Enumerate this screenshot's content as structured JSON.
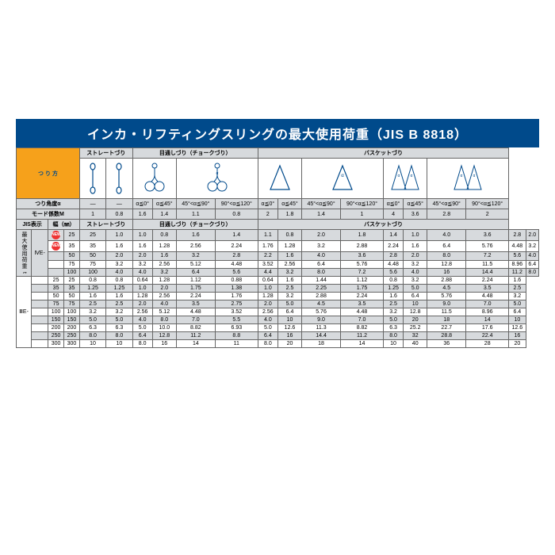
{
  "title": "インカ・リフティングスリングの最大使用荷重（JIS B 8818）",
  "method_label": "つ り 方",
  "angle_label": "つり角度α",
  "mode_label": "モード係数M",
  "jis_label": "JIS表示",
  "width_label": "幅（㎜）",
  "max_load_label": "最大使用荷重 t",
  "method_groups": [
    "ストレートづり",
    "目通しづり（チョークづり）",
    "バスケットづり"
  ],
  "method_sub": [
    "ストレートづり",
    "目通しづり（チョークづり）",
    "バスケットづり"
  ],
  "angles": [
    "—",
    "—",
    "α≦0°",
    "α≦45°",
    "45°<α≦90°",
    "90°<α≦120°",
    "α≦0°",
    "α≦45°",
    "45°<α≦90°",
    "90°<α≦120°",
    "α≦0°",
    "α≦45°",
    "45°<α≦90°",
    "90°<α≦120°"
  ],
  "modes": [
    "1",
    "0.8",
    "1.6",
    "1.4",
    "1.1",
    "0.8",
    "2",
    "1.8",
    "1.4",
    "1",
    "4",
    "3.6",
    "2.8",
    "2"
  ],
  "grade1": "ⅣE-",
  "grade2": "ⅢE-",
  "rows1": [
    {
      "new": true,
      "v": [
        "25",
        "25",
        "1.0",
        "1.0",
        "0.8",
        "1.6",
        "1.4",
        "1.1",
        "0.8",
        "2.0",
        "1.8",
        "1.4",
        "1.0",
        "4.0",
        "3.6",
        "2.8",
        "2.0"
      ]
    },
    {
      "new": true,
      "v": [
        "35",
        "35",
        "1.6",
        "1.6",
        "1.28",
        "2.56",
        "2.24",
        "1.76",
        "1.28",
        "3.2",
        "2.88",
        "2.24",
        "1.6",
        "6.4",
        "5.76",
        "4.48",
        "3.2"
      ]
    },
    {
      "new": false,
      "v": [
        "50",
        "50",
        "2.0",
        "2.0",
        "1.6",
        "3.2",
        "2.8",
        "2.2",
        "1.6",
        "4.0",
        "3.6",
        "2.8",
        "2.0",
        "8.0",
        "7.2",
        "5.6",
        "4.0"
      ]
    },
    {
      "new": false,
      "v": [
        "75",
        "75",
        "3.2",
        "3.2",
        "2.56",
        "5.12",
        "4.48",
        "3.52",
        "2.56",
        "6.4",
        "5.76",
        "4.48",
        "3.2",
        "12.8",
        "11.5",
        "8.96",
        "6.4"
      ]
    },
    {
      "new": false,
      "v": [
        "100",
        "100",
        "4.0",
        "4.0",
        "3.2",
        "6.4",
        "5.6",
        "4.4",
        "3.2",
        "8.0",
        "7.2",
        "5.6",
        "4.0",
        "16",
        "14.4",
        "11.2",
        "8.0"
      ]
    }
  ],
  "rows2": [
    [
      "25",
      "25",
      "0.8",
      "0.8",
      "0.64",
      "1.28",
      "1.12",
      "0.88",
      "0.64",
      "1.6",
      "1.44",
      "1.12",
      "0.8",
      "3.2",
      "2.88",
      "2.24",
      "1.6"
    ],
    [
      "35",
      "35",
      "1.25",
      "1.25",
      "1.0",
      "2.0",
      "1.75",
      "1.38",
      "1.0",
      "2.5",
      "2.25",
      "1.75",
      "1.25",
      "5.0",
      "4.5",
      "3.5",
      "2.5"
    ],
    [
      "50",
      "50",
      "1.6",
      "1.6",
      "1.28",
      "2.56",
      "2.24",
      "1.76",
      "1.28",
      "3.2",
      "2.88",
      "2.24",
      "1.6",
      "6.4",
      "5.76",
      "4.48",
      "3.2"
    ],
    [
      "75",
      "75",
      "2.5",
      "2.5",
      "2.0",
      "4.0",
      "3.5",
      "2.75",
      "2.0",
      "5.0",
      "4.5",
      "3.5",
      "2.5",
      "10",
      "9.0",
      "7.0",
      "5.0"
    ],
    [
      "100",
      "100",
      "3.2",
      "3.2",
      "2.56",
      "5.12",
      "4.48",
      "3.52",
      "2.56",
      "6.4",
      "5.76",
      "4.48",
      "3.2",
      "12.8",
      "11.5",
      "8.96",
      "6.4"
    ],
    [
      "150",
      "150",
      "5.0",
      "5.0",
      "4.0",
      "8.0",
      "7.0",
      "5.5",
      "4.0",
      "10",
      "9.0",
      "7.0",
      "5.0",
      "20",
      "18",
      "14",
      "10"
    ],
    [
      "200",
      "200",
      "6.3",
      "6.3",
      "5.0",
      "10.0",
      "8.82",
      "6.93",
      "5.0",
      "12.6",
      "11.3",
      "8.82",
      "6.3",
      "25.2",
      "22.7",
      "17.6",
      "12.6"
    ],
    [
      "250",
      "250",
      "8.0",
      "8.0",
      "6.4",
      "12.8",
      "11.2",
      "8.8",
      "6.4",
      "16",
      "14.4",
      "11.2",
      "8.0",
      "32",
      "28.8",
      "22.4",
      "16"
    ],
    [
      "300",
      "300",
      "10",
      "10",
      "8.0",
      "16",
      "14",
      "11",
      "8.0",
      "20",
      "18",
      "14",
      "10",
      "40",
      "36",
      "28",
      "20"
    ]
  ]
}
